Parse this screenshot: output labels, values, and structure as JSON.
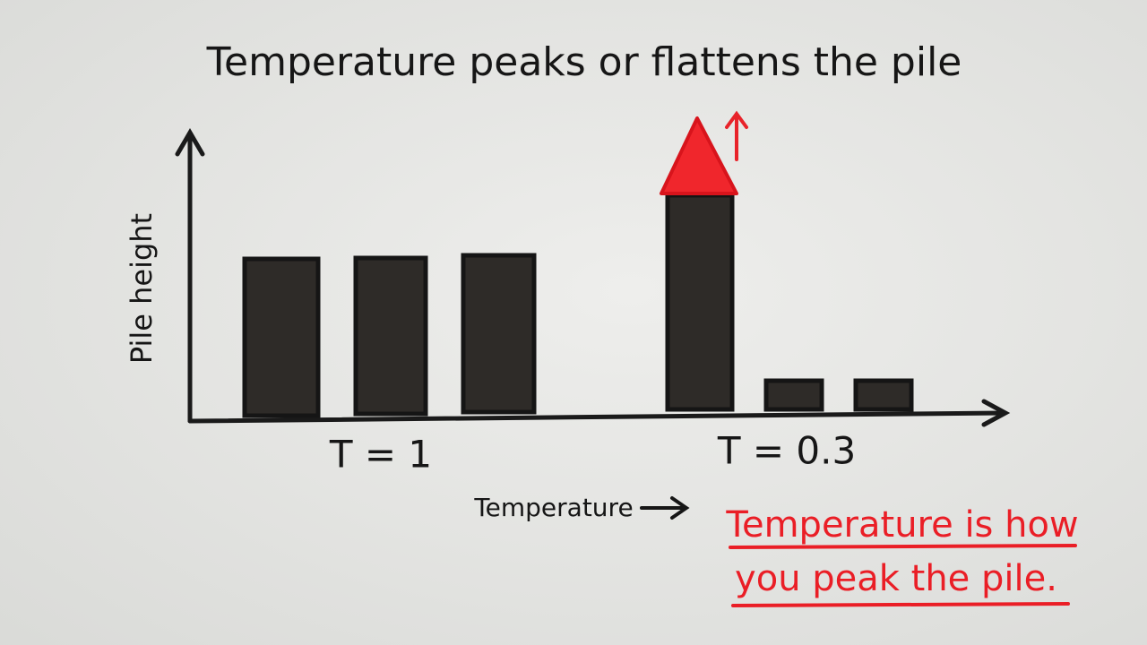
{
  "header": {
    "title": "Temperature peaks or flattens the pile"
  },
  "diagram": {
    "y_axis_label": "Pile height",
    "x_axis_label": "Temperature",
    "groups": [
      {
        "label": "T = 1"
      },
      {
        "label": "T = 0.3"
      }
    ]
  },
  "note": {
    "lines": [
      "Temperature is how",
      "you peak the pile."
    ]
  }
}
